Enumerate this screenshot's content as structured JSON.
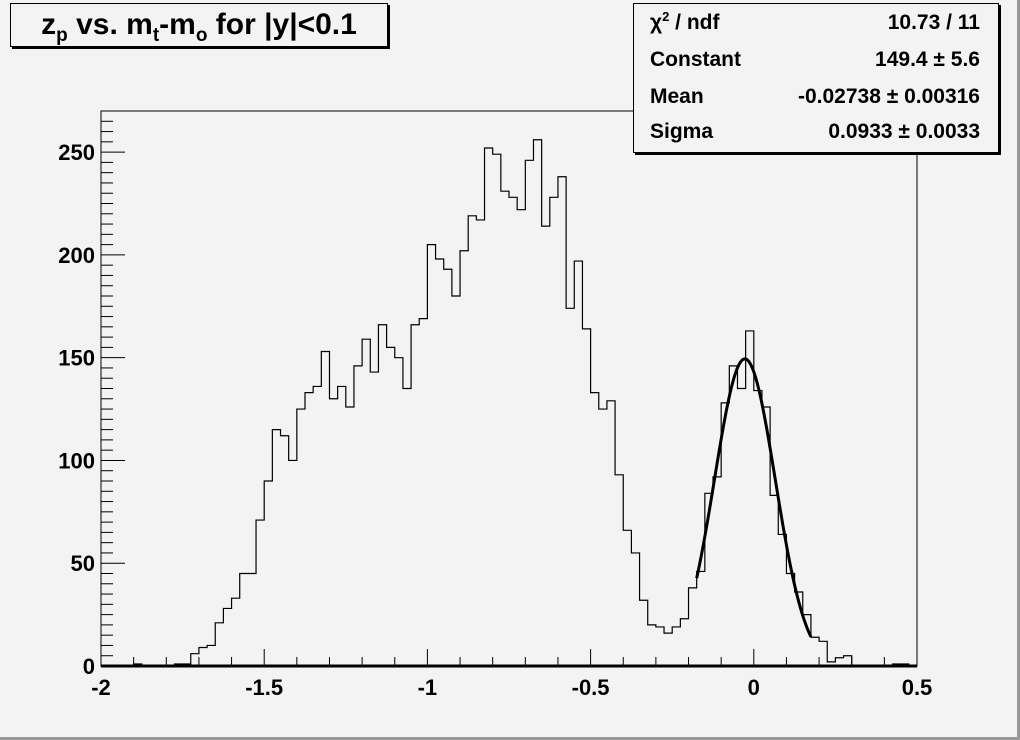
{
  "chart_data": {
    "type": "bar",
    "title": {
      "main": "z",
      "sub1": "p",
      "mid": " vs. m",
      "sub2": "t",
      "mid2": "-m",
      "sub3": "o",
      "tail": " for |y|<0.1"
    },
    "xlim": [
      -2,
      0.5
    ],
    "ylim": [
      0,
      270
    ],
    "bin_width": 0.025,
    "x_ticks": [
      "-2",
      "-1.5",
      "-1",
      "-0.5",
      "0",
      "0.5"
    ],
    "x_tick_values": [
      -2,
      -1.5,
      -1,
      -0.5,
      0,
      0.5
    ],
    "y_ticks": [
      "0",
      "50",
      "100",
      "150",
      "200",
      "250"
    ],
    "y_tick_values": [
      0,
      50,
      100,
      150,
      200,
      250
    ],
    "values": [
      0,
      0,
      0,
      0,
      1,
      0,
      0,
      0,
      0,
      1,
      1,
      6,
      9,
      10,
      21,
      28,
      33,
      45,
      45,
      71,
      90,
      115,
      112,
      100,
      125,
      133,
      136,
      153,
      130,
      136,
      126,
      146,
      159,
      143,
      166,
      155,
      150,
      135,
      166,
      169,
      205,
      198,
      193,
      180,
      202,
      219,
      217,
      252,
      249,
      231,
      228,
      222,
      246,
      256,
      214,
      228,
      238,
      174,
      197,
      164,
      133,
      125,
      129,
      93,
      66,
      55,
      32,
      20,
      19,
      16,
      19,
      23,
      38,
      46,
      84,
      92,
      128,
      146,
      135,
      163,
      134,
      126,
      83,
      64,
      45,
      36,
      25,
      14,
      12,
      2,
      4,
      5,
      0,
      0,
      0,
      0,
      0,
      1,
      1,
      0
    ],
    "fit": {
      "function": "gaus",
      "constant": 149.4,
      "mean": -0.02738,
      "sigma": 0.0933,
      "range": [
        -0.175,
        0.175
      ]
    },
    "legend_placement": "top-right",
    "grid": false
  },
  "stats": [
    {
      "label_main": "χ",
      "label_sup": "2",
      "label_tail": " / ndf",
      "value": "10.73 / 11"
    },
    {
      "label_main": "Constant",
      "label_sup": "",
      "label_tail": "",
      "value": "149.4 ± 5.6"
    },
    {
      "label_main": "Mean",
      "label_sup": "",
      "label_tail": "",
      "value": "-0.02738 ± 0.00316"
    },
    {
      "label_main": "Sigma",
      "label_sup": "",
      "label_tail": "",
      "value": "0.0933 ± 0.0033"
    }
  ],
  "colors": {
    "background": "#f3f3f3",
    "line": "#000000"
  }
}
